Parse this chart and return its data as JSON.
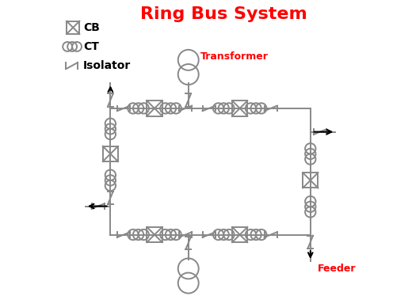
{
  "title": "Ring Bus System",
  "title_color": "red",
  "title_fontsize": 16,
  "line_color": "#888888",
  "bg_color": "#ffffff",
  "transformer_label": "Transformer",
  "feeder_label": "Feeder",
  "figsize": [
    5.2,
    3.74
  ],
  "dpi": 100,
  "RL": 0.175,
  "RR": 0.855,
  "RT": 0.635,
  "RB": 0.205
}
